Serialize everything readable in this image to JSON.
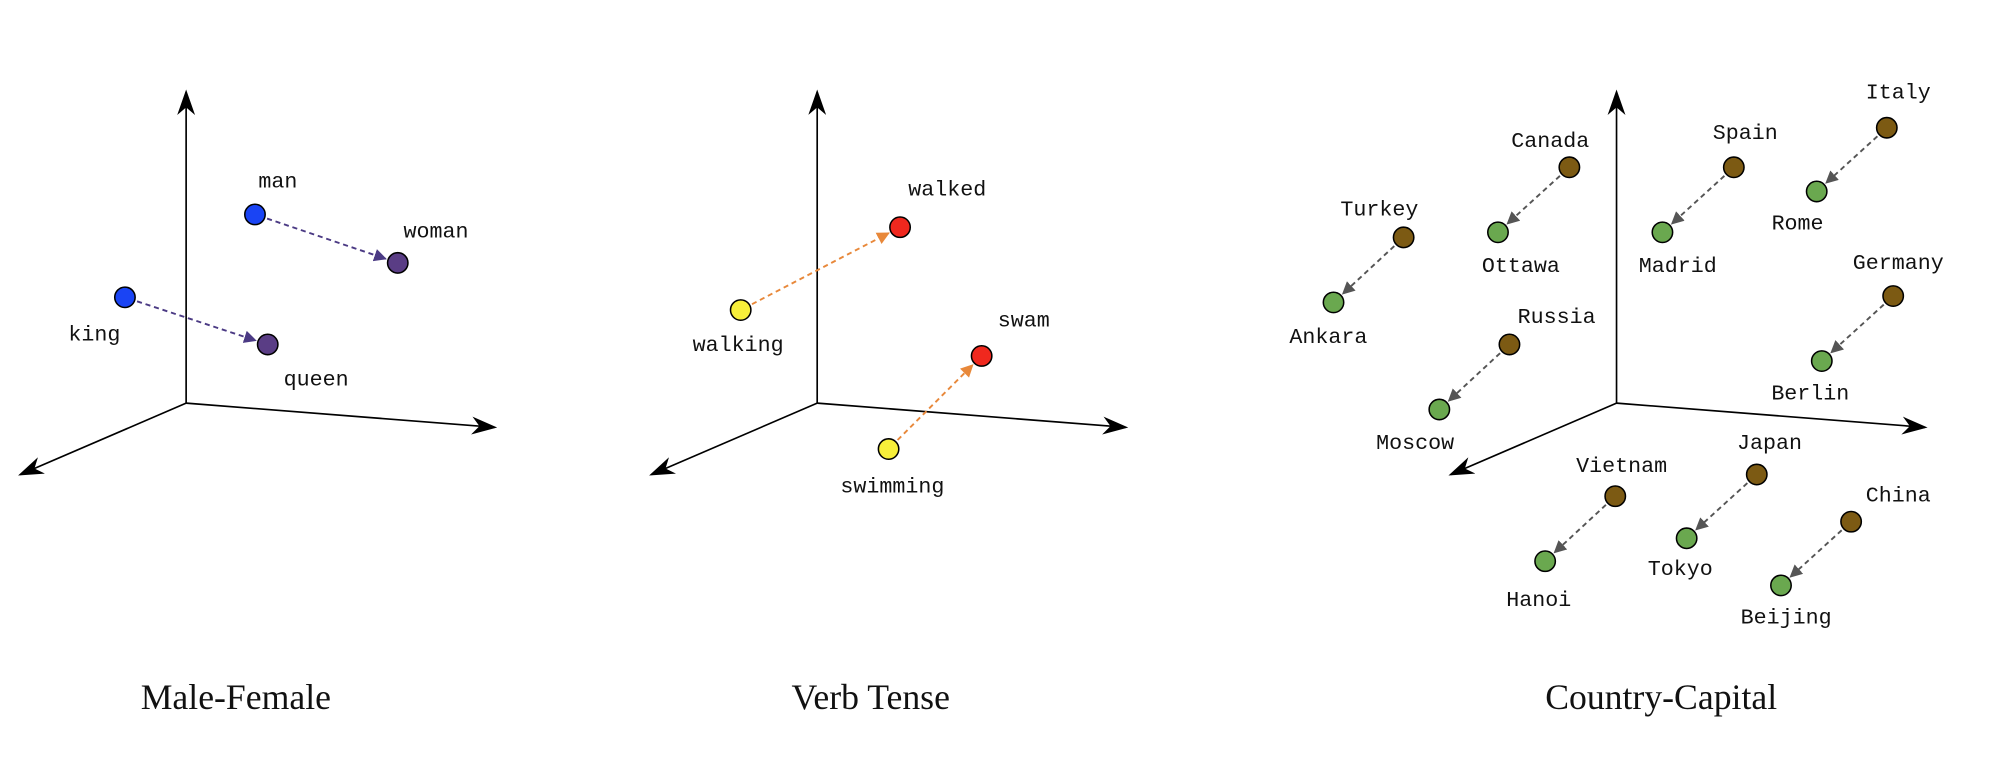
{
  "panels": [
    {
      "title": "Male-Female",
      "arrow_color": "#4b3a84",
      "words": {
        "man": "man",
        "woman": "woman",
        "king": "king",
        "queen": "queen"
      },
      "pairs": [
        [
          "man",
          "woman"
        ],
        [
          "king",
          "queen"
        ]
      ],
      "colors": {
        "source": "#1a44f4",
        "target": "#5a3d85"
      }
    },
    {
      "title": "Verb Tense",
      "arrow_color": "#e8883a",
      "words": {
        "walking": "walking",
        "walked": "walked",
        "swimming": "swimming",
        "swam": "swam"
      },
      "pairs": [
        [
          "walking",
          "walked"
        ],
        [
          "swimming",
          "swam"
        ]
      ],
      "colors": {
        "source": "#f7ef3a",
        "target": "#f0281e"
      }
    },
    {
      "title": "Country-Capital",
      "arrow_color": "#555555",
      "words": {
        "Canada": "Canada",
        "Ottawa": "Ottawa",
        "Spain": "Spain",
        "Madrid": "Madrid",
        "Italy": "Italy",
        "Rome": "Rome",
        "Turkey": "Turkey",
        "Ankara": "Ankara",
        "Germany": "Germany",
        "Berlin": "Berlin",
        "Russia": "Russia",
        "Moscow": "Moscow",
        "Vietnam": "Vietnam",
        "Hanoi": "Hanoi",
        "Japan": "Japan",
        "Tokyo": "Tokyo",
        "China": "China",
        "Beijing": "Beijing"
      },
      "pairs": [
        [
          "Canada",
          "Ottawa"
        ],
        [
          "Spain",
          "Madrid"
        ],
        [
          "Italy",
          "Rome"
        ],
        [
          "Turkey",
          "Ankara"
        ],
        [
          "Germany",
          "Berlin"
        ],
        [
          "Russia",
          "Moscow"
        ],
        [
          "Vietnam",
          "Hanoi"
        ],
        [
          "Japan",
          "Tokyo"
        ],
        [
          "China",
          "Beijing"
        ]
      ],
      "colors": {
        "source": "#7c5a13",
        "target": "#6aa84f"
      }
    }
  ]
}
